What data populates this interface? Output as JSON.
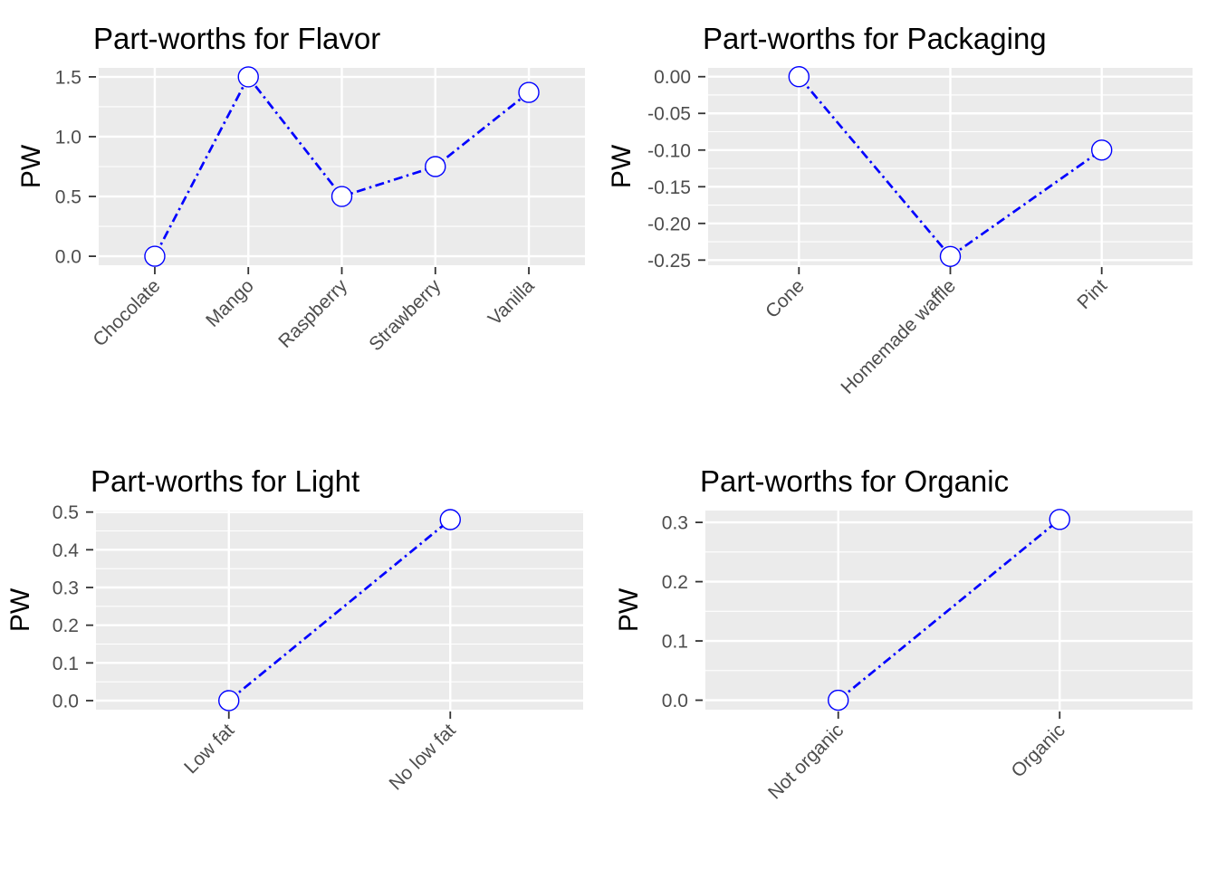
{
  "page": {
    "background": "#FFFFFF"
  },
  "colors": {
    "line": "#0000FF",
    "point_fill": "#FFFFFF",
    "panel_bg": "#EBEBEB",
    "grid": "#FFFFFF",
    "axis_text": "#4D4D4D",
    "title_text": "#000000",
    "tick_mark": "#333333"
  },
  "chart_data": [
    {
      "type": "line",
      "title": "Part-worths for Flavor",
      "xlabel": "",
      "ylabel": "PW",
      "categories": [
        "Chocolate",
        "Mango",
        "Raspberry",
        "Strawberry",
        "Vanilla"
      ],
      "values": [
        0.0,
        1.5,
        0.5,
        0.75,
        1.37
      ],
      "yticks": [
        0.0,
        0.5,
        1.0,
        1.5
      ],
      "ytick_labels": [
        "0.0",
        "0.5",
        "1.0",
        "1.5"
      ],
      "ylim": [
        -0.075,
        1.575
      ],
      "minor_step": 0.25,
      "grid": "on",
      "line_style": "dash-dot",
      "marker": "open-circle"
    },
    {
      "type": "line",
      "title": "Part-worths for Packaging",
      "xlabel": "",
      "ylabel": "PW",
      "categories": [
        "Cone",
        "Homemade waffle",
        "Pint"
      ],
      "values": [
        0.0,
        -0.245,
        -0.1
      ],
      "yticks": [
        -0.25,
        -0.2,
        -0.15,
        -0.1,
        -0.05,
        0.0
      ],
      "ytick_labels": [
        "-0.25",
        "-0.20",
        "-0.15",
        "-0.10",
        "-0.05",
        "0.00"
      ],
      "ylim": [
        -0.257,
        0.012
      ],
      "minor_step": 0.025,
      "grid": "on",
      "line_style": "dash-dot",
      "marker": "open-circle"
    },
    {
      "type": "line",
      "title": "Part-worths for Light",
      "xlabel": "",
      "ylabel": "PW",
      "categories": [
        "Low fat",
        "No low fat"
      ],
      "values": [
        0.0,
        0.48
      ],
      "yticks": [
        0.0,
        0.1,
        0.2,
        0.3,
        0.4,
        0.5
      ],
      "ytick_labels": [
        "0.0",
        "0.1",
        "0.2",
        "0.3",
        "0.4",
        "0.5"
      ],
      "ylim": [
        -0.024,
        0.504
      ],
      "minor_step": 0.05,
      "grid": "on",
      "line_style": "dash-dot",
      "marker": "open-circle"
    },
    {
      "type": "line",
      "title": "Part-worths for Organic",
      "xlabel": "",
      "ylabel": "PW",
      "categories": [
        "Not organic",
        "Organic"
      ],
      "values": [
        0.0,
        0.305
      ],
      "yticks": [
        0.0,
        0.1,
        0.2,
        0.3
      ],
      "ytick_labels": [
        "0.0",
        "0.1",
        "0.2",
        "0.3"
      ],
      "ylim": [
        -0.016,
        0.32
      ],
      "minor_step": 0.05,
      "grid": "on",
      "line_style": "dash-dot",
      "marker": "open-circle"
    }
  ]
}
